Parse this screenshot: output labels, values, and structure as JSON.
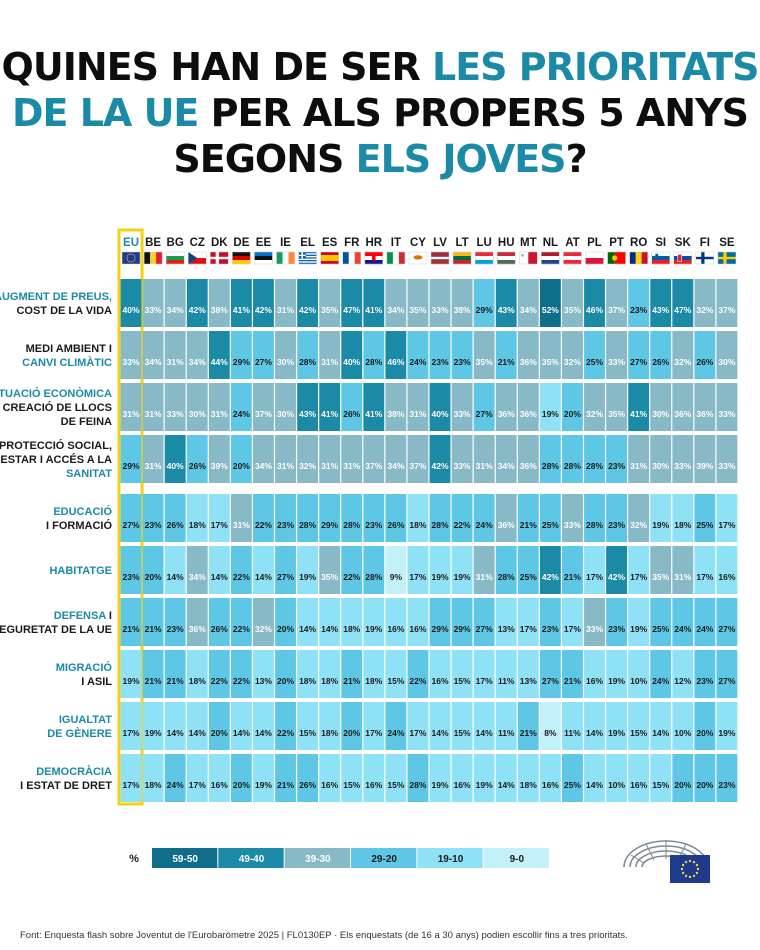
{
  "title": {
    "p1": "QUINES HAN DE SER ",
    "p2": "LES PRIORITATS",
    "p3": "DE LA UE",
    "p4": " PER ALS PROPERS 5 ANYS",
    "p5": "SEGONS ",
    "p6": "ELS JOVES",
    "p7": "?"
  },
  "colors": {
    "accent": "#1b8aa6",
    "eu_highlight": "#f5d116",
    "bin_59_50": "#0f6f8a",
    "bin_49_40": "#1b8aa6",
    "bin_39_30": "#87b9c7",
    "bin_29_20": "#5ec7e6",
    "bin_19_10": "#8fe1f5",
    "bin_9_0": "#c4f0fa"
  },
  "chart_data": {
    "type": "heatmap",
    "unit": "%",
    "columns": [
      "EU",
      "BE",
      "BG",
      "CZ",
      "DK",
      "DE",
      "EE",
      "IE",
      "EL",
      "ES",
      "FR",
      "HR",
      "IT",
      "CY",
      "LV",
      "LT",
      "LU",
      "HU",
      "MT",
      "NL",
      "AT",
      "PL",
      "PT",
      "RO",
      "SI",
      "SK",
      "FI",
      "SE"
    ],
    "flag_icons": [
      "eu-flag-icon",
      "belgium-flag-icon",
      "bulgaria-flag-icon",
      "czechia-flag-icon",
      "denmark-flag-icon",
      "germany-flag-icon",
      "estonia-flag-icon",
      "ireland-flag-icon",
      "greece-flag-icon",
      "spain-flag-icon",
      "france-flag-icon",
      "croatia-flag-icon",
      "italy-flag-icon",
      "cyprus-flag-icon",
      "latvia-flag-icon",
      "lithuania-flag-icon",
      "luxembourg-flag-icon",
      "hungary-flag-icon",
      "malta-flag-icon",
      "netherlands-flag-icon",
      "austria-flag-icon",
      "poland-flag-icon",
      "portugal-flag-icon",
      "romania-flag-icon",
      "slovenia-flag-icon",
      "slovakia-flag-icon",
      "finland-flag-icon",
      "sweden-flag-icon"
    ],
    "rows": [
      {
        "label_lines": [
          {
            "text": "AUGMENT DE PREUS,",
            "accent": true
          },
          {
            "text": "COST DE LA VIDA",
            "accent": false
          }
        ],
        "values": [
          40,
          33,
          34,
          42,
          38,
          41,
          42,
          31,
          42,
          35,
          47,
          41,
          34,
          35,
          33,
          38,
          29,
          43,
          34,
          52,
          35,
          46,
          37,
          23,
          43,
          47,
          32,
          37
        ]
      },
      {
        "label_lines": [
          {
            "text": "MEDI AMBIENT I",
            "accent": false
          },
          {
            "text": "CANVI CLIMÀTIC",
            "accent": true
          }
        ],
        "values": [
          33,
          34,
          31,
          34,
          44,
          29,
          27,
          30,
          28,
          31,
          40,
          28,
          46,
          24,
          23,
          23,
          35,
          21,
          36,
          35,
          32,
          25,
          33,
          27,
          26,
          32,
          26,
          30
        ]
      },
      {
        "label_lines": [
          {
            "text": "SITUACIÓ ECONÒMICA",
            "accent": true
          },
          {
            "text": "I CREACIÓ DE LLOCS",
            "accent": false
          },
          {
            "text": "DE FEINA",
            "accent": false
          }
        ],
        "values": [
          31,
          31,
          33,
          30,
          31,
          24,
          37,
          30,
          43,
          41,
          26,
          41,
          38,
          31,
          40,
          33,
          27,
          36,
          36,
          19,
          20,
          32,
          35,
          41,
          30,
          36,
          36,
          33
        ]
      },
      {
        "label_lines": [
          {
            "text": "PROTECCIÓ SOCIAL,",
            "accent": false
          },
          {
            "text": "BENESTAR I ACCÉS A LA",
            "accent": false
          },
          {
            "text": "SANITAT",
            "accent": true
          }
        ],
        "values": [
          29,
          31,
          40,
          26,
          39,
          20,
          34,
          31,
          32,
          31,
          31,
          37,
          34,
          37,
          42,
          33,
          31,
          34,
          36,
          28,
          28,
          28,
          23,
          31,
          30,
          33,
          39,
          33
        ]
      },
      {
        "label_lines": [
          {
            "text": "EDUCACIÓ",
            "accent": true
          },
          {
            "text": "I FORMACIÓ",
            "accent": false
          }
        ],
        "values": [
          27,
          23,
          26,
          18,
          17,
          31,
          22,
          23,
          28,
          29,
          28,
          23,
          26,
          18,
          28,
          22,
          24,
          36,
          21,
          25,
          33,
          28,
          23,
          32,
          19,
          18,
          25,
          17
        ]
      },
      {
        "label_lines": [
          {
            "text": "HABITATGE",
            "accent": true
          }
        ],
        "values": [
          23,
          20,
          14,
          34,
          14,
          22,
          14,
          27,
          19,
          35,
          22,
          28,
          9,
          17,
          19,
          19,
          31,
          28,
          25,
          42,
          21,
          17,
          42,
          17,
          35,
          31,
          17,
          16
        ]
      },
      {
        "label_lines": [
          {
            "text": "DEFENSA",
            "accent": true,
            "suffix": " I"
          },
          {
            "text": "SEGURETAT DE LA UE",
            "accent": false
          }
        ],
        "values": [
          21,
          21,
          23,
          36,
          26,
          22,
          32,
          20,
          14,
          14,
          18,
          19,
          16,
          16,
          29,
          29,
          27,
          13,
          17,
          23,
          17,
          33,
          23,
          19,
          25,
          24,
          24,
          27
        ]
      },
      {
        "label_lines": [
          {
            "text": "MIGRACIÓ",
            "accent": true
          },
          {
            "text": "I ASIL",
            "accent": false
          }
        ],
        "values": [
          19,
          21,
          21,
          18,
          22,
          22,
          13,
          20,
          18,
          18,
          21,
          18,
          15,
          22,
          16,
          15,
          17,
          11,
          13,
          27,
          21,
          16,
          19,
          10,
          24,
          12,
          23,
          27
        ]
      },
      {
        "label_lines": [
          {
            "text": "IGUALTAT",
            "accent": true
          },
          {
            "text": "DE GÈNERE",
            "accent": true
          }
        ],
        "values": [
          17,
          19,
          14,
          14,
          20,
          14,
          14,
          22,
          15,
          18,
          20,
          17,
          24,
          17,
          14,
          15,
          14,
          11,
          21,
          8,
          11,
          14,
          19,
          15,
          14,
          10,
          20,
          19
        ]
      },
      {
        "label_lines": [
          {
            "text": "DEMOCRÀCIA",
            "accent": true
          },
          {
            "text": "I ESTAT DE DRET",
            "accent": false
          }
        ],
        "values": [
          17,
          18,
          24,
          17,
          16,
          20,
          19,
          21,
          26,
          16,
          15,
          16,
          15,
          28,
          19,
          16,
          19,
          14,
          18,
          16,
          25,
          14,
          10,
          16,
          15,
          20,
          20,
          23
        ]
      }
    ],
    "legend": {
      "symbol": "%",
      "bins": [
        {
          "label": "59-50",
          "min": 50,
          "max": 59,
          "color": "#0f6f8a"
        },
        {
          "label": "49-40",
          "min": 40,
          "max": 49,
          "color": "#1b8aa6"
        },
        {
          "label": "39-30",
          "min": 30,
          "max": 39,
          "color": "#87b9c7"
        },
        {
          "label": "29-20",
          "min": 20,
          "max": 29,
          "color": "#5ec7e6"
        },
        {
          "label": "19-10",
          "min": 10,
          "max": 19,
          "color": "#8fe1f5"
        },
        {
          "label": "9-0",
          "min": 0,
          "max": 9,
          "color": "#c4f0fa"
        }
      ]
    }
  },
  "footnote": "Font: Enquesta flash sobre Joventut de l'Eurobaròmetre 2025 | FL0130EP · Els enquestats (de 16 a 30 anys) podien escollir fins a tres prioritats.",
  "logo_icon": "european-parliament-logo-icon"
}
